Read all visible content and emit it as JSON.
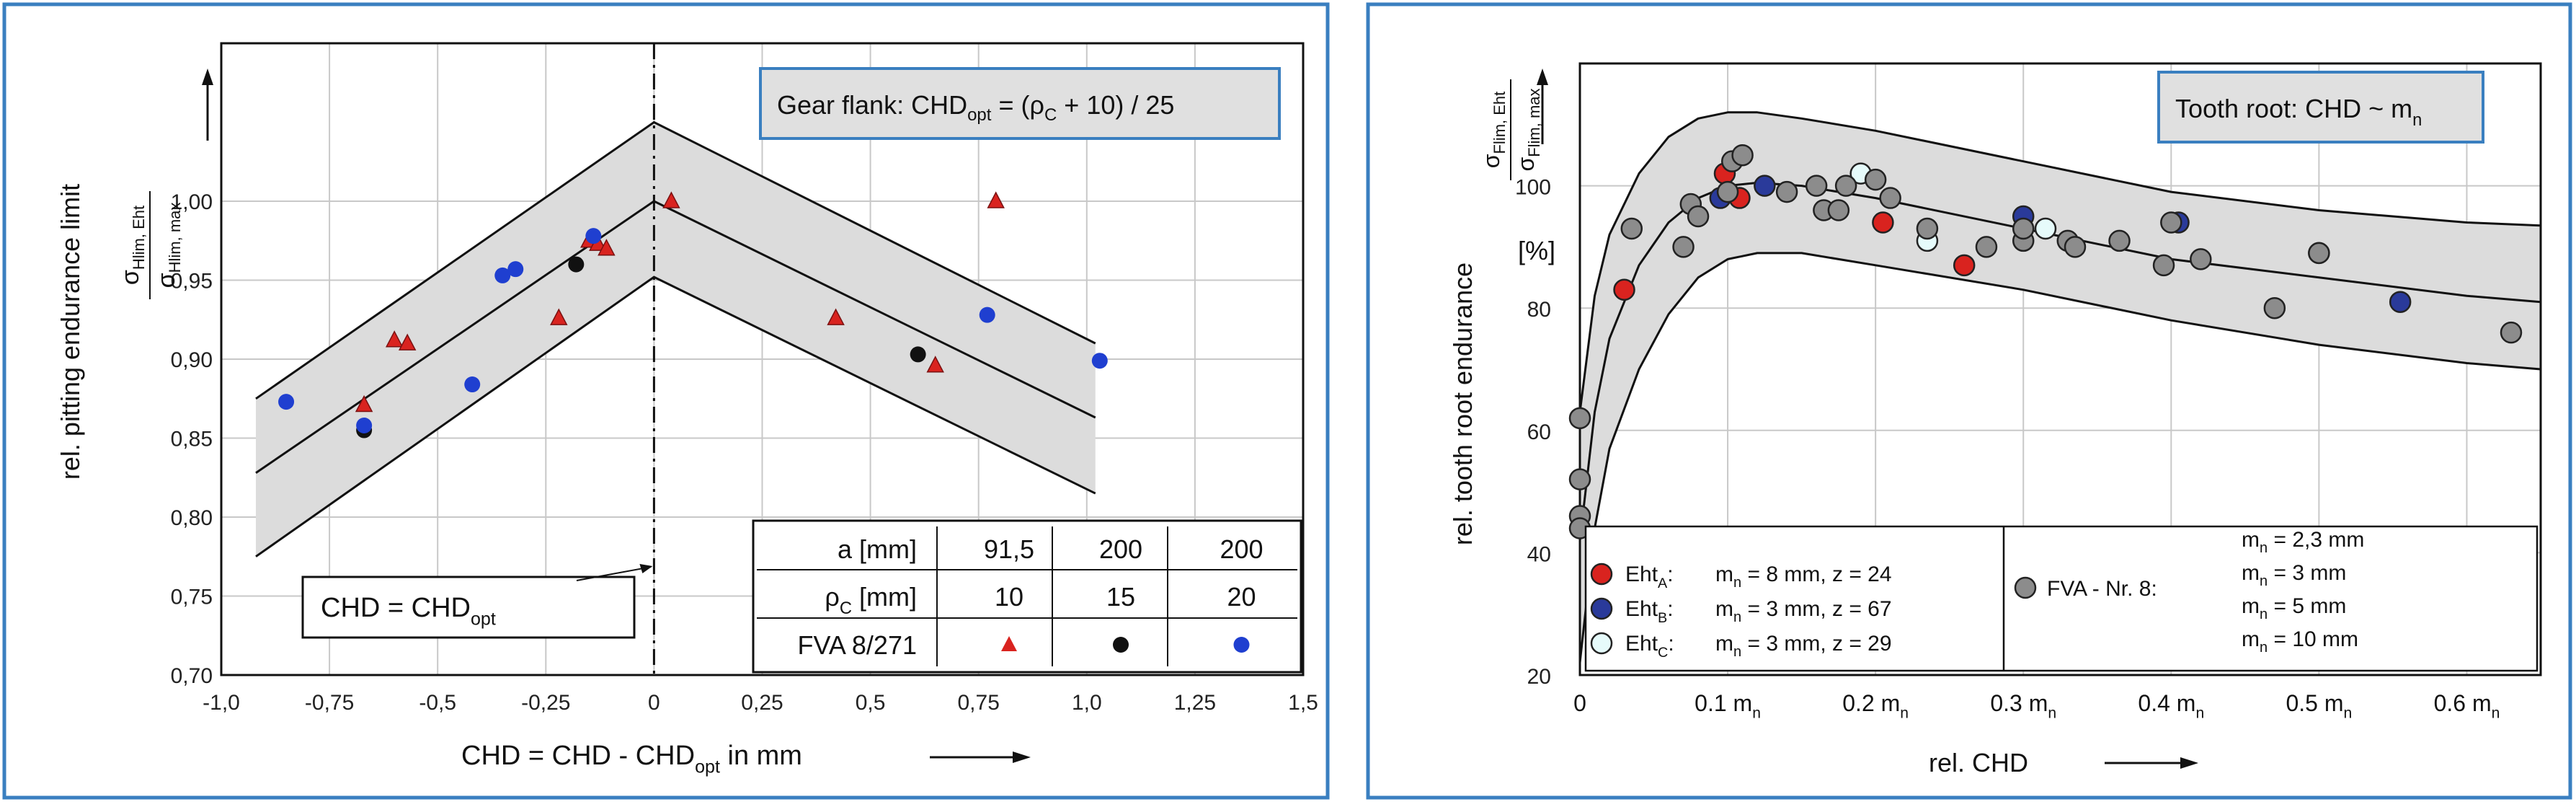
{
  "chart_data": [
    {
      "type": "scatter",
      "title": "Gear flank: CHD_opt = (ρc + 10) / 25",
      "title_main": "Gear flank: CHD",
      "title_sub": "opt",
      "title_rest": " = (ρ",
      "title_rho_sub": "C",
      "title_end": " + 10) / 25",
      "xlabel": "CHD = CHD - CHD_opt   in mm",
      "xlabel_main": "CHD = CHD - CHD",
      "xlabel_sub": "opt",
      "xlabel_rest": "  in mm",
      "ylabel": "rel. pitting endurance limit",
      "yratio_num": "σ",
      "yratio_num_sub": "Hlim, Eht",
      "yratio_den": "σ",
      "yratio_den_sub": "Hlim, max",
      "xlim": [
        -1.0,
        1.5
      ],
      "ylim": [
        0.7,
        1.1
      ],
      "xticks": [
        -1.0,
        -0.75,
        -0.5,
        -0.25,
        0,
        0.25,
        0.5,
        0.75,
        1.0,
        1.25,
        1.5
      ],
      "xtick_labels": [
        "-1,0",
        "-0,75",
        "-0,5",
        "-0,25",
        "0",
        "0,25",
        "0,5",
        "0,75",
        "1,0",
        "1,25",
        "1,5"
      ],
      "yticks": [
        0.7,
        0.75,
        0.8,
        0.85,
        0.9,
        0.95,
        1.0
      ],
      "ytick_labels": [
        "0,70",
        "0,75",
        "0,80",
        "0,85",
        "0,90",
        "0,95",
        "1,00"
      ],
      "band": {
        "x": [
          -0.92,
          0.0,
          1.02
        ],
        "center": [
          0.828,
          1.0,
          0.863
        ],
        "upper": [
          0.875,
          1.05,
          0.91
        ],
        "lower": [
          0.775,
          0.952,
          0.815
        ]
      },
      "annotation": "CHD = CHD_opt",
      "annotation_main": "CHD = CHD",
      "annotation_sub": "opt",
      "legend": {
        "row1_label": "a [mm]",
        "row2_label": "ρC [mm]",
        "row2_main": "ρ",
        "row2_sub": "C",
        "row2_rest": " [mm]",
        "row3_label": "FVA 8/271",
        "col_a": [
          "91,5",
          "200",
          "200"
        ],
        "col_rho": [
          "10",
          "15",
          "20"
        ]
      },
      "series": [
        {
          "name": "a=91,5 ρC=10",
          "marker": "triangle",
          "color": "#d9231f",
          "points": [
            [
              -0.67,
              0.871
            ],
            [
              -0.6,
              0.912
            ],
            [
              -0.57,
              0.91
            ],
            [
              -0.22,
              0.926
            ],
            [
              -0.15,
              0.975
            ],
            [
              -0.13,
              0.973
            ],
            [
              -0.11,
              0.97
            ],
            [
              0.04,
              1.0
            ],
            [
              0.42,
              0.926
            ],
            [
              0.65,
              0.896
            ],
            [
              0.79,
              1.0
            ]
          ]
        },
        {
          "name": "a=200 ρC=15",
          "marker": "circle",
          "color": "#111111",
          "points": [
            [
              -0.67,
              0.855
            ],
            [
              -0.18,
              0.96
            ],
            [
              0.61,
              0.903
            ]
          ]
        },
        {
          "name": "a=200 ρC=20",
          "marker": "circle",
          "color": "#1f3fd0",
          "points": [
            [
              -0.85,
              0.873
            ],
            [
              -0.67,
              0.858
            ],
            [
              -0.42,
              0.884
            ],
            [
              -0.35,
              0.953
            ],
            [
              -0.32,
              0.957
            ],
            [
              -0.14,
              0.978
            ],
            [
              0.77,
              0.928
            ],
            [
              1.03,
              0.899
            ]
          ]
        }
      ]
    },
    {
      "type": "scatter",
      "title": "Tooth root: CHD ~ mn",
      "title_main": "Tooth root: CHD ~ m",
      "title_sub": "n",
      "xlabel": "rel.  CHD",
      "ylabel": "rel. tooth root endurance",
      "yratio_num": "σ",
      "yratio_num_sub": "Flim, Eht",
      "yratio_den": "σ",
      "yratio_den_sub": "Flim, max",
      "yunit": "[%]",
      "xlim": [
        0,
        0.65
      ],
      "ylim": [
        20,
        120
      ],
      "xticks": [
        0,
        0.1,
        0.2,
        0.3,
        0.4,
        0.5,
        0.6
      ],
      "xtick_labels": [
        "0",
        "0.1 m",
        "0.2 m",
        "0.3 m",
        "0.4 m",
        "0.5 m",
        "0.6 m"
      ],
      "xtick_sub": "n",
      "yticks": [
        20,
        40,
        60,
        80,
        100
      ],
      "ytick_labels": [
        "20",
        "40",
        "60",
        "80",
        "100"
      ],
      "curves": {
        "x": [
          0.0,
          0.01,
          0.02,
          0.04,
          0.06,
          0.08,
          0.1,
          0.12,
          0.15,
          0.2,
          0.3,
          0.4,
          0.5,
          0.6,
          0.65
        ],
        "upper": [
          63,
          82,
          92,
          102,
          108,
          111,
          112,
          112,
          111,
          109,
          104,
          99,
          96,
          94,
          93.5
        ],
        "middle": [
          42,
          63,
          75,
          87,
          94,
          98,
          100,
          100.5,
          100,
          98,
          93,
          88,
          85,
          82,
          81
        ],
        "lower": [
          22,
          44,
          57,
          70,
          79,
          85,
          88,
          89,
          89,
          87,
          83,
          78,
          74,
          71,
          70
        ]
      },
      "legend_left": [
        {
          "marker": "Eht_A",
          "main": "Eht",
          "sub": "A",
          "text": "m_n = 8 mm,  z = 24",
          "color": "#d9231f"
        },
        {
          "marker": "Eht_B",
          "main": "Eht",
          "sub": "B",
          "text": "m_n = 3 mm,  z = 67",
          "color": "#2a3a9a"
        },
        {
          "marker": "Eht_C",
          "main": "Eht",
          "sub": "C",
          "text": "m_n = 3 mm,  z = 29",
          "color": "#e6fbfb"
        }
      ],
      "legend_right": {
        "label": "FVA - Nr. 8:",
        "color": "#8c8c8c",
        "lines": [
          "m_n = 2,3 mm",
          "m_n =    3 mm",
          "m_n =    5 mm",
          "m_n =  10 mm"
        ]
      },
      "series": [
        {
          "name": "EhtA",
          "color": "#d9231f",
          "points": [
            [
              0.03,
              83
            ],
            [
              0.098,
              102
            ],
            [
              0.108,
              98
            ],
            [
              0.205,
              94
            ],
            [
              0.26,
              87
            ]
          ]
        },
        {
          "name": "EhtB",
          "color": "#2a3a9a",
          "points": [
            [
              0.095,
              98
            ],
            [
              0.125,
              100
            ],
            [
              0.3,
              95
            ],
            [
              0.405,
              94
            ],
            [
              0.555,
              81
            ]
          ]
        },
        {
          "name": "EhtC",
          "color": "#e6fbfb",
          "points": [
            [
              0.19,
              102
            ],
            [
              0.235,
              91
            ],
            [
              0.315,
              93
            ],
            [
              0.5,
              89
            ]
          ]
        },
        {
          "name": "FVA",
          "color": "#8c8c8c",
          "points": [
            [
              0.0,
              62
            ],
            [
              0.0,
              52
            ],
            [
              0.0,
              46
            ],
            [
              0.0,
              44
            ],
            [
              0.035,
              93
            ],
            [
              0.07,
              90
            ],
            [
              0.075,
              97
            ],
            [
              0.08,
              95
            ],
            [
              0.1,
              99
            ],
            [
              0.103,
              104
            ],
            [
              0.11,
              105
            ],
            [
              0.14,
              99
            ],
            [
              0.16,
              100
            ],
            [
              0.165,
              96
            ],
            [
              0.175,
              96
            ],
            [
              0.18,
              100
            ],
            [
              0.2,
              101
            ],
            [
              0.21,
              98
            ],
            [
              0.235,
              93
            ],
            [
              0.275,
              90
            ],
            [
              0.3,
              91
            ],
            [
              0.3,
              93
            ],
            [
              0.33,
              91
            ],
            [
              0.335,
              90
            ],
            [
              0.365,
              91
            ],
            [
              0.395,
              87
            ],
            [
              0.4,
              94
            ],
            [
              0.42,
              88
            ],
            [
              0.47,
              80
            ],
            [
              0.5,
              89
            ],
            [
              0.63,
              76
            ]
          ]
        }
      ]
    }
  ]
}
